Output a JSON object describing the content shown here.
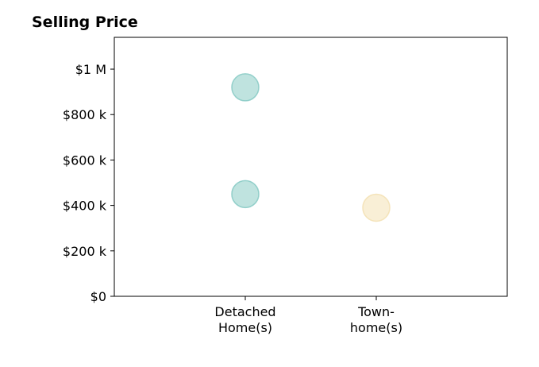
{
  "chart_data": {
    "type": "scatter",
    "title": "Selling Price",
    "xlabel": "",
    "ylabel": "",
    "categories": [
      [
        "Detached",
        "Home(s)"
      ],
      [
        "Town-",
        "home(s)"
      ]
    ],
    "ylim": [
      0,
      1140000
    ],
    "yticks": [
      {
        "value": 0,
        "label": "$0"
      },
      {
        "value": 200000,
        "label": "$200 k"
      },
      {
        "value": 400000,
        "label": "$400 k"
      },
      {
        "value": 600000,
        "label": "$600 k"
      },
      {
        "value": 800000,
        "label": "$800 k"
      },
      {
        "value": 1000000,
        "label": "$1 M"
      }
    ],
    "points": [
      {
        "category": 0,
        "value": 920000,
        "color": "#7fc7c0"
      },
      {
        "category": 0,
        "value": 450000,
        "color": "#7fc7c0"
      },
      {
        "category": 1,
        "value": 390000,
        "color": "#f3dfae"
      }
    ],
    "grid": false,
    "legend": "none"
  }
}
